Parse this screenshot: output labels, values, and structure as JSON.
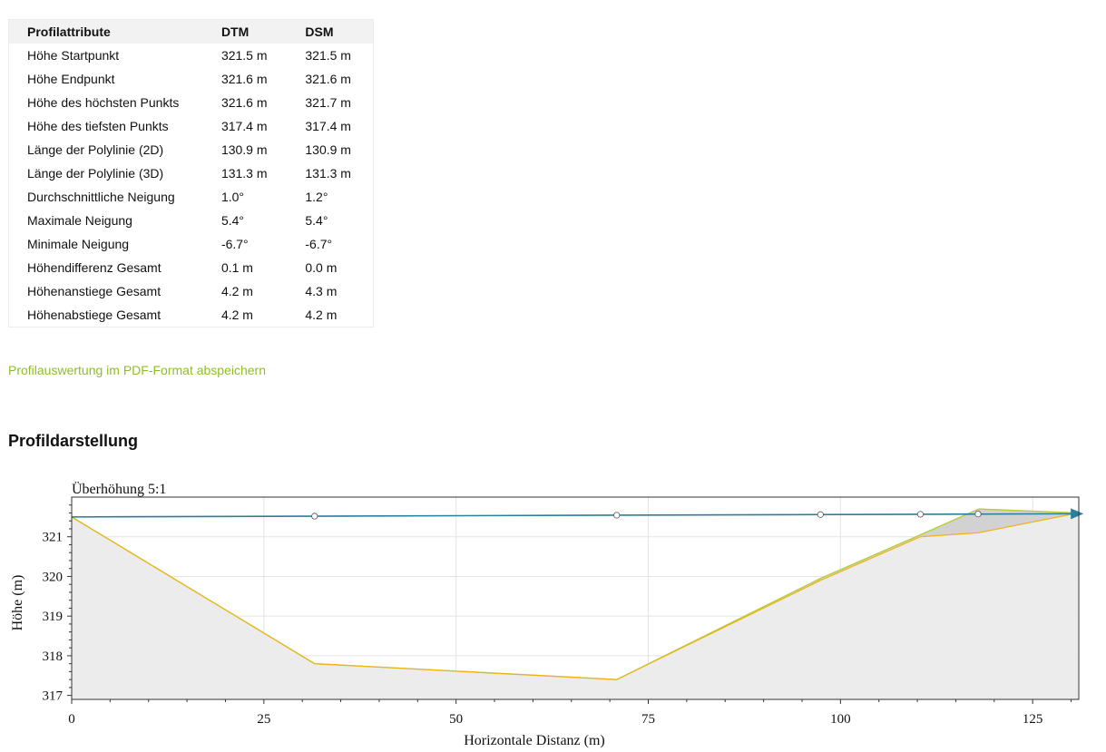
{
  "table": {
    "headers": [
      "Profilattribute",
      "DTM",
      "DSM"
    ],
    "rows": [
      {
        "label": "Höhe Startpunkt",
        "dtm": "321.5 m",
        "dsm": "321.5 m"
      },
      {
        "label": "Höhe Endpunkt",
        "dtm": "321.6 m",
        "dsm": "321.6 m"
      },
      {
        "label": "Höhe des höchsten Punkts",
        "dtm": "321.6 m",
        "dsm": "321.7 m"
      },
      {
        "label": "Höhe des tiefsten Punkts",
        "dtm": "317.4 m",
        "dsm": "317.4 m"
      },
      {
        "label": "Länge der Polylinie (2D)",
        "dtm": "130.9 m",
        "dsm": "130.9 m"
      },
      {
        "label": "Länge der Polylinie (3D)",
        "dtm": "131.3 m",
        "dsm": "131.3 m"
      },
      {
        "label": "Durchschnittliche Neigung",
        "dtm": "1.0°",
        "dsm": "1.2°"
      },
      {
        "label": "Maximale Neigung",
        "dtm": "5.4°",
        "dsm": "5.4°"
      },
      {
        "label": "Minimale Neigung",
        "dtm": "-6.7°",
        "dsm": "-6.7°"
      },
      {
        "label": "Höhendifferenz Gesamt",
        "dtm": "0.1 m",
        "dsm": "0.0 m"
      },
      {
        "label": "Höhenanstiege Gesamt",
        "dtm": "4.2 m",
        "dsm": "4.3 m"
      },
      {
        "label": "Höhenabstiege Gesamt",
        "dtm": "4.2 m",
        "dsm": "4.2 m"
      }
    ]
  },
  "pdf_link_label": "Profilauswertung im PDF-Format abspeichern",
  "section_title": "Profildarstellung",
  "colors": {
    "link": "#8fbd2c",
    "dtm_line": "#f0b31a",
    "dsm_line": "#b5cf3a",
    "sight_line": "#2a7f9a",
    "fill": "#ececec",
    "dsm_fill": "#d2d2d2"
  },
  "chart_data": {
    "type": "area",
    "annotation": "Überhöhung 5:1",
    "xlabel": "Horizontale Distanz (m)",
    "ylabel": "Höhe (m)",
    "xlim": [
      0,
      131
    ],
    "ylim": [
      316.9,
      322.0
    ],
    "xticks": [
      0,
      25,
      50,
      75,
      100,
      125
    ],
    "yticks": [
      317,
      318,
      319,
      320,
      321
    ],
    "grid": true,
    "series": [
      {
        "x": [
          0,
          31.6,
          70.9,
          97.4,
          110.4,
          117.9,
          130.9
        ],
        "y": [
          321.5,
          317.8,
          317.4,
          319.9,
          321.0,
          321.1,
          321.6
        ]
      },
      {
        "x": [
          0,
          31.6,
          70.9,
          97.4,
          110.4,
          118.0,
          130.9
        ],
        "y": [
          321.5,
          317.8,
          317.4,
          319.95,
          321.05,
          321.7,
          321.6
        ]
      },
      {
        "x": [
          0,
          130.9
        ],
        "y": [
          321.5,
          321.58
        ]
      }
    ],
    "sight_markers_x": [
      31.6,
      70.9,
      97.4,
      110.4,
      117.9
    ]
  }
}
